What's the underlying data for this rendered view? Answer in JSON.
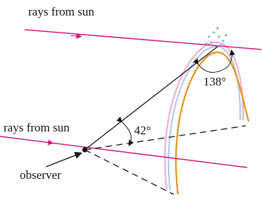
{
  "labels": {
    "top_ray": "rays from sun",
    "bottom_ray": "rays from sun",
    "angle_small": "42°",
    "angle_large": "138°",
    "observer": "observer"
  }
}
